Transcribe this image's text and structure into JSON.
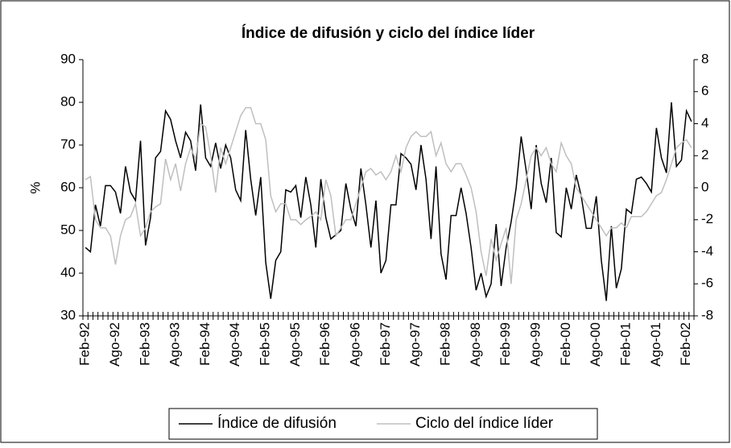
{
  "chart_data": {
    "type": "line",
    "title": "Índice de difusión y ciclo del índice líder",
    "ylabel": "%",
    "categories": [
      "Feb-92",
      null,
      null,
      null,
      null,
      null,
      "Ago-92",
      null,
      null,
      null,
      null,
      null,
      "Feb-93",
      null,
      null,
      null,
      null,
      null,
      "Ago-93",
      null,
      null,
      null,
      null,
      null,
      "Feb-94",
      null,
      null,
      null,
      null,
      null,
      "Ago-94",
      null,
      null,
      null,
      null,
      null,
      "Feb-95",
      null,
      null,
      null,
      null,
      null,
      "Ago-95",
      null,
      null,
      null,
      null,
      null,
      "Feb-96",
      null,
      null,
      null,
      null,
      null,
      "Ago-96",
      null,
      null,
      null,
      null,
      null,
      "Feb-97",
      null,
      null,
      null,
      null,
      null,
      "Ago-97",
      null,
      null,
      null,
      null,
      null,
      "Feb-98",
      null,
      null,
      null,
      null,
      null,
      "Ago-98",
      null,
      null,
      null,
      null,
      null,
      "Feb-99",
      null,
      null,
      null,
      null,
      null,
      "Ago-99",
      null,
      null,
      null,
      null,
      null,
      "Feb-00",
      null,
      null,
      null,
      null,
      null,
      "Ago-00",
      null,
      null,
      null,
      null,
      null,
      "Feb-01",
      null,
      null,
      null,
      null,
      null,
      "Ago-01",
      null,
      null,
      null,
      null,
      null,
      "Feb-02",
      null
    ],
    "series": [
      {
        "name": "Índice de difusión",
        "color": "#000000",
        "axis": "y",
        "values": [
          46,
          45,
          56,
          51,
          60.5,
          60.5,
          59,
          54,
          65,
          59,
          57,
          71,
          46.5,
          53,
          67,
          68.5,
          78,
          76,
          71,
          67,
          73,
          71,
          64,
          79.5,
          67,
          65,
          70.5,
          64.5,
          70,
          67,
          59.5,
          57,
          73.5,
          62,
          53.5,
          62.5,
          42.5,
          34,
          43,
          45,
          59.5,
          59,
          60.5,
          53,
          62.5,
          56,
          46,
          62,
          53,
          48,
          49,
          50,
          61,
          55,
          51,
          64.5,
          56,
          46,
          57,
          40,
          43,
          56,
          56,
          68,
          67,
          65.5,
          59.5,
          70,
          62,
          48,
          65,
          44.5,
          38.5,
          53.5,
          53.5,
          60,
          54,
          46,
          36,
          40,
          34.5,
          37.5,
          51.5,
          37,
          46,
          52,
          60,
          72,
          64,
          55,
          70,
          61,
          56.5,
          67,
          49.5,
          48.5,
          60,
          55,
          63,
          58,
          50.5,
          50.5,
          58,
          43,
          33.5,
          51,
          36.5,
          41,
          55,
          54,
          62,
          62.5,
          61,
          59,
          74,
          67,
          63.5,
          80,
          65,
          66.5,
          78,
          75.5
        ]
      },
      {
        "name": "Ciclo del índice líder",
        "color": "#bfbfbf",
        "axis": "y2",
        "values": [
          0.5,
          0.7,
          -2,
          -2.5,
          -2.5,
          -3,
          -4.8,
          -3,
          -2,
          -1.8,
          -1,
          -3,
          -2.5,
          -1.5,
          -1.2,
          -1,
          1.8,
          0.5,
          1.5,
          -0.2,
          1.5,
          2.5,
          1.8,
          4,
          3.8,
          2,
          -0.3,
          2.5,
          1.5,
          2.5,
          3.5,
          4.5,
          5,
          5,
          4,
          4,
          3,
          -0.5,
          -1.5,
          -1,
          -1,
          -2,
          -2,
          -2.3,
          -2,
          -1.8,
          -1.5,
          -2,
          0.5,
          -0.5,
          -3,
          -2.5,
          -2,
          -2,
          -1,
          0,
          1,
          1.2,
          0.8,
          1,
          0.5,
          1,
          2,
          1,
          2.5,
          3.2,
          3.5,
          3.2,
          3.2,
          3.5,
          2,
          2.8,
          1.5,
          1,
          1.5,
          1.5,
          0.8,
          0,
          -1.5,
          -4,
          -5.5,
          -3.2,
          -4.5,
          -3.5,
          -2.5,
          -6,
          -2,
          -1,
          0.5,
          2,
          2.5,
          2,
          2.5,
          1.5,
          1,
          2.8,
          2,
          1.5,
          0,
          -0.5,
          -1,
          -1.5,
          -2,
          -2.5,
          -3,
          -2.5,
          -2.5,
          -2.2,
          -2.5,
          -1.8,
          -1.8,
          -1.8,
          -1.5,
          -1,
          -0.5,
          -0.3,
          0.5,
          1.5,
          2.5,
          2.8,
          3,
          2.5
        ]
      }
    ],
    "ylim": [
      30,
      90
    ],
    "yticks": [
      30,
      40,
      50,
      60,
      70,
      80,
      90
    ],
    "y2lim": [
      -8,
      8
    ],
    "y2ticks": [
      -8,
      -6,
      -4,
      -2,
      0,
      2,
      4,
      6,
      8
    ],
    "grid": false,
    "legend": "bottom"
  }
}
